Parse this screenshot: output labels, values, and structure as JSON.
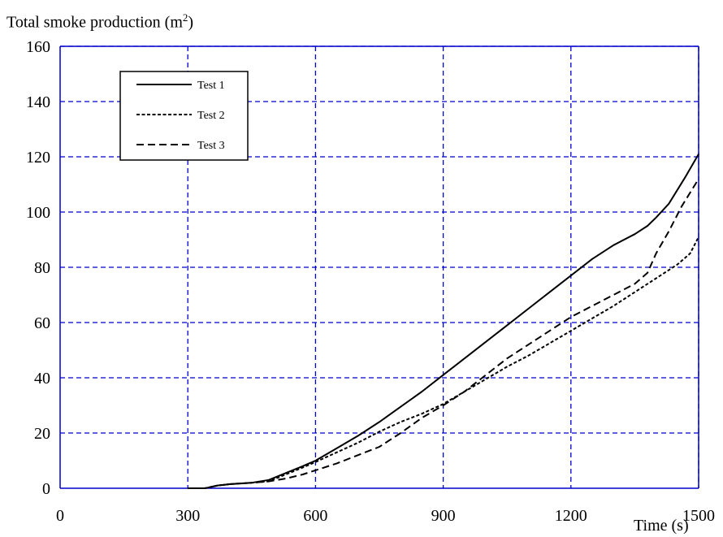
{
  "chart_data": {
    "type": "line",
    "title": "",
    "ylabel": "Total smoke production (m",
    "ylabel_sup": "2",
    "ylabel_suffix": ")",
    "xlabel": "Time (s)",
    "xlim": [
      0,
      1500
    ],
    "ylim": [
      0,
      160
    ],
    "xticks": [
      0,
      300,
      600,
      900,
      1200,
      1500
    ],
    "yticks": [
      0,
      20,
      40,
      60,
      80,
      100,
      120,
      140,
      160
    ],
    "grid": true,
    "grid_color": "#0000cc",
    "legend_position": "top-left",
    "series": [
      {
        "name": "Test 1",
        "style": "solid",
        "color": "#000000",
        "x": [
          300,
          340,
          370,
          400,
          450,
          490,
          530,
          570,
          600,
          650,
          700,
          750,
          800,
          850,
          900,
          950,
          1000,
          1050,
          1100,
          1150,
          1200,
          1250,
          1300,
          1350,
          1380,
          1400,
          1430,
          1450,
          1470,
          1500
        ],
        "y": [
          0,
          0,
          1,
          1.5,
          2,
          3,
          5.5,
          8,
          10,
          14.5,
          19,
          24,
          29.5,
          35,
          41,
          47,
          53,
          59,
          65,
          71,
          77,
          83,
          88,
          92,
          95,
          98,
          103,
          108,
          113,
          121
        ]
      },
      {
        "name": "Test 2",
        "style": "dotted",
        "color": "#000000",
        "x": [
          300,
          340,
          370,
          400,
          450,
          490,
          530,
          570,
          600,
          650,
          700,
          750,
          800,
          850,
          900,
          950,
          1000,
          1050,
          1100,
          1150,
          1200,
          1250,
          1300,
          1350,
          1400,
          1450,
          1480,
          1500
        ],
        "y": [
          0,
          0,
          1,
          1.5,
          2,
          2.5,
          5,
          7.5,
          9.5,
          13,
          16.5,
          20.5,
          24,
          27,
          30.5,
          35,
          39.5,
          44,
          48,
          52.5,
          57,
          61.5,
          66,
          71,
          76,
          81,
          85,
          91
        ]
      },
      {
        "name": "Test 3",
        "style": "dashed",
        "color": "#000000",
        "x": [
          300,
          340,
          370,
          400,
          450,
          490,
          530,
          570,
          600,
          650,
          700,
          750,
          800,
          850,
          900,
          950,
          1000,
          1050,
          1100,
          1150,
          1200,
          1250,
          1300,
          1350,
          1380,
          1400,
          1430,
          1460,
          1500
        ],
        "y": [
          0,
          0,
          1,
          1.5,
          2,
          2.5,
          3.5,
          5,
          6.5,
          9,
          12,
          15,
          20,
          25.5,
          30,
          35,
          41,
          47,
          52,
          57,
          62,
          66,
          70,
          74,
          78,
          85,
          93,
          102,
          112
        ]
      }
    ]
  }
}
